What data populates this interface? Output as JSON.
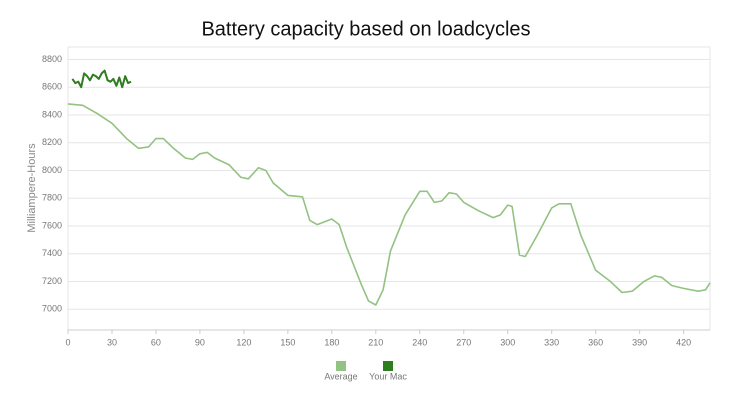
{
  "chart_data": {
    "type": "line",
    "title": "Battery capacity based on loadcycles",
    "y_label": "Milliampere-Hours",
    "series": [
      {
        "name": "Average",
        "color": "#93c283",
        "x": [
          0,
          10,
          20,
          30,
          40,
          48,
          55,
          60,
          65,
          72,
          80,
          85,
          90,
          95,
          100,
          110,
          118,
          123,
          130,
          135,
          140,
          150,
          160,
          165,
          170,
          180,
          185,
          190,
          200,
          205,
          210,
          215,
          220,
          230,
          240,
          245,
          250,
          255,
          260,
          265,
          270,
          280,
          290,
          295,
          300,
          303,
          308,
          312,
          320,
          330,
          335,
          343,
          350,
          360,
          370,
          378,
          385,
          393,
          400,
          405,
          412,
          420,
          430,
          435,
          438
        ],
        "values": [
          8480,
          8470,
          8410,
          8340,
          8230,
          8160,
          8170,
          8230,
          8230,
          8160,
          8090,
          8080,
          8120,
          8130,
          8090,
          8040,
          7950,
          7940,
          8020,
          8000,
          7910,
          7820,
          7810,
          7640,
          7610,
          7650,
          7610,
          7450,
          7180,
          7060,
          7030,
          7140,
          7420,
          7680,
          7850,
          7850,
          7770,
          7780,
          7840,
          7830,
          7770,
          7710,
          7660,
          7680,
          7750,
          7740,
          7390,
          7380,
          7530,
          7730,
          7760,
          7760,
          7530,
          7280,
          7200,
          7120,
          7130,
          7200,
          7240,
          7230,
          7170,
          7150,
          7130,
          7140,
          7190
        ]
      },
      {
        "name": "Your Mac",
        "color": "#2e7d1f",
        "x": [
          3,
          5,
          7,
          9,
          11,
          13,
          15,
          17,
          19,
          21,
          23,
          25,
          27,
          29,
          31,
          33,
          35,
          37,
          39,
          41,
          43
        ],
        "values": [
          8660,
          8630,
          8640,
          8600,
          8700,
          8680,
          8650,
          8690,
          8680,
          8660,
          8700,
          8720,
          8650,
          8640,
          8660,
          8610,
          8670,
          8600,
          8680,
          8630,
          8640
        ]
      }
    ],
    "xlim": [
      0,
      438
    ],
    "xticks": [
      0,
      30,
      60,
      90,
      120,
      150,
      180,
      210,
      240,
      270,
      300,
      330,
      360,
      390,
      420
    ],
    "ylim": [
      6850,
      8890
    ],
    "yticks": [
      7000,
      7200,
      7400,
      7600,
      7800,
      8000,
      8200,
      8400,
      8600,
      8800
    ],
    "grid": true,
    "legend": "bottom"
  }
}
